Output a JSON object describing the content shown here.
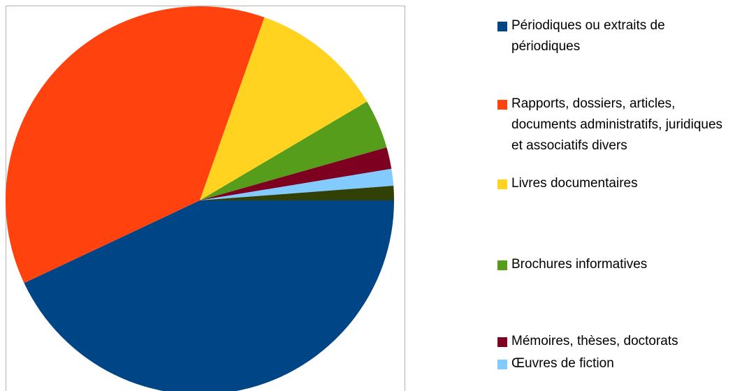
{
  "chart_data": {
    "type": "pie",
    "categories": [
      "Périodiques ou extraits de périodiques",
      "Rapports, dossiers, articles, documents administratifs, juridiques et associatifs divers",
      "Livres documentaires",
      "Brochures informatives",
      "Mémoires, thèses, doctorats",
      "Œuvres de fiction",
      null
    ],
    "values": [
      43,
      37.4,
      11.1,
      4.1,
      1.8,
      1.4,
      1.2
    ],
    "colors": [
      "#004586",
      "#ff420e",
      "#ffd320",
      "#579d1c",
      "#7e0021",
      "#83caff",
      "#314004"
    ]
  }
}
